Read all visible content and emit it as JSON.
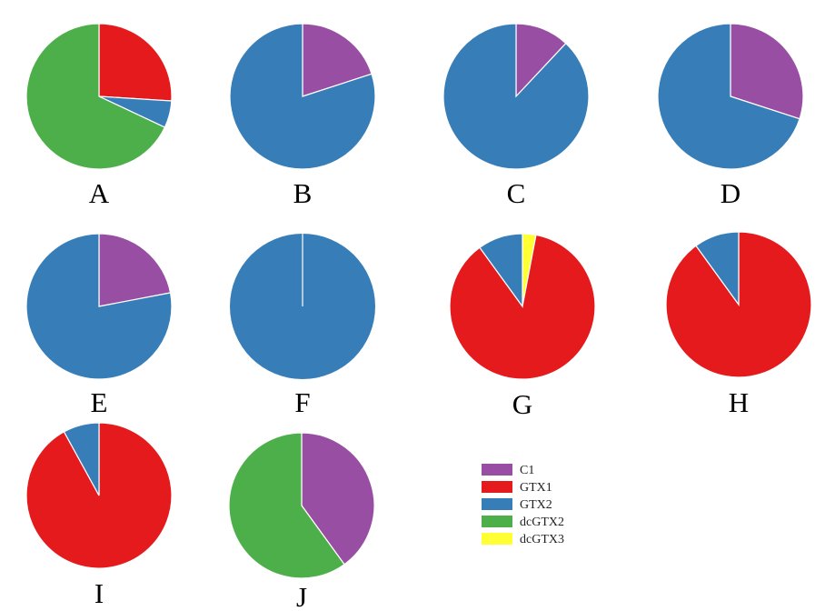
{
  "colors": {
    "C1": "#984ea3",
    "GTX1": "#e41a1c",
    "GTX2": "#377eb8",
    "dcGTX2": "#4daf4a",
    "dcGTX3": "#ffff33"
  },
  "legend": {
    "placement": "bottom-right",
    "items": [
      {
        "label": "C1",
        "color": "#984ea3"
      },
      {
        "label": "GTX1",
        "color": "#e41a1c"
      },
      {
        "label": "GTX2",
        "color": "#377eb8"
      },
      {
        "label": "dcGTX2",
        "color": "#4daf4a"
      },
      {
        "label": "dcGTX3",
        "color": "#ffff33"
      }
    ]
  },
  "chart_data": [
    {
      "type": "pie",
      "title": "A",
      "labels": [
        "GTX1",
        "GTX2",
        "dcGTX2"
      ],
      "values": [
        26,
        6,
        68
      ]
    },
    {
      "type": "pie",
      "title": "B",
      "labels": [
        "C1",
        "GTX2"
      ],
      "values": [
        20,
        80
      ]
    },
    {
      "type": "pie",
      "title": "C",
      "labels": [
        "C1",
        "GTX2"
      ],
      "values": [
        12,
        88
      ]
    },
    {
      "type": "pie",
      "title": "D",
      "labels": [
        "C1",
        "GTX2"
      ],
      "values": [
        30,
        70
      ]
    },
    {
      "type": "pie",
      "title": "E",
      "labels": [
        "C1",
        "GTX2"
      ],
      "values": [
        22,
        78
      ]
    },
    {
      "type": "pie",
      "title": "F",
      "labels": [
        "GTX2"
      ],
      "values": [
        100
      ]
    },
    {
      "type": "pie",
      "title": "G",
      "labels": [
        "dcGTX3",
        "GTX1",
        "GTX2"
      ],
      "values": [
        3,
        87,
        10
      ]
    },
    {
      "type": "pie",
      "title": "H",
      "labels": [
        "GTX1",
        "GTX2"
      ],
      "values": [
        90,
        10
      ]
    },
    {
      "type": "pie",
      "title": "I",
      "labels": [
        "GTX1",
        "GTX2"
      ],
      "values": [
        92,
        8
      ]
    },
    {
      "type": "pie",
      "title": "J",
      "labels": [
        "C1",
        "dcGTX2"
      ],
      "values": [
        40,
        60
      ]
    }
  ]
}
